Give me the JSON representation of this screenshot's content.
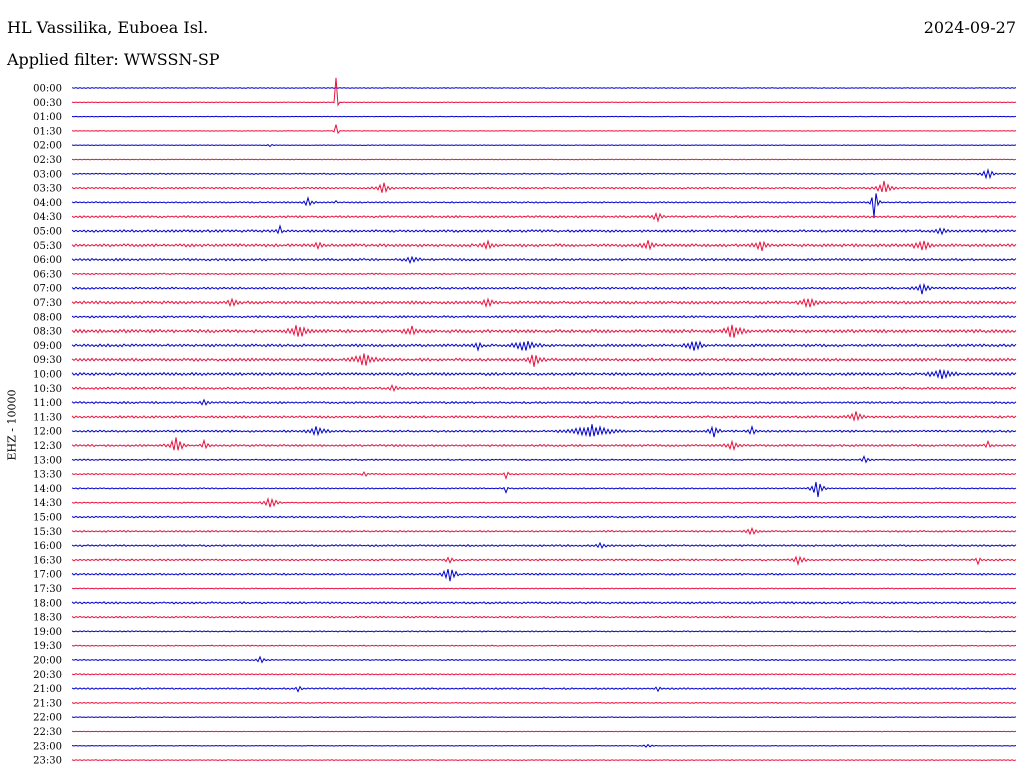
{
  "header": {
    "station": "HL Vassilika, Euboea Isl.",
    "date": "2024-09-27",
    "filter": "Applied filter: WWSSN-SP"
  },
  "chart_data": {
    "type": "line",
    "ylabel": "EHZ - 10000",
    "row_labels": [
      "00:00",
      "00:30",
      "01:00",
      "01:30",
      "02:00",
      "02:30",
      "03:00",
      "03:30",
      "04:00",
      "04:30",
      "05:00",
      "05:30",
      "06:00",
      "06:30",
      "07:00",
      "07:30",
      "08:00",
      "08:30",
      "09:00",
      "09:30",
      "10:00",
      "10:30",
      "11:00",
      "11:30",
      "12:00",
      "12:30",
      "13:00",
      "13:30",
      "14:00",
      "14:30",
      "15:00",
      "15:30",
      "16:00",
      "16:30",
      "17:00",
      "17:30",
      "18:00",
      "18:30",
      "19:00",
      "19:30",
      "20:00",
      "20:30",
      "21:00",
      "21:30",
      "22:00",
      "22:30",
      "23:00",
      "23:30"
    ],
    "colors": [
      "#0000cc",
      "#e8113e"
    ],
    "noise_level": [
      0.4,
      0.3,
      0.3,
      0.3,
      0.3,
      0.4,
      0.6,
      0.8,
      0.7,
      1.0,
      1.2,
      1.4,
      1.1,
      0.7,
      1.0,
      1.4,
      1.0,
      1.6,
      1.3,
      1.4,
      1.4,
      1.1,
      1.0,
      1.1,
      1.0,
      1.0,
      0.7,
      0.7,
      0.6,
      0.6,
      0.8,
      0.8,
      0.9,
      0.9,
      0.9,
      0.5,
      1.0,
      0.8,
      0.6,
      0.5,
      0.6,
      0.6,
      0.8,
      0.5,
      0.4,
      0.3,
      0.3,
      0.4
    ],
    "events": [
      {
        "row": 1,
        "t": 0.28,
        "amp": 45,
        "dur": 2
      },
      {
        "row": 3,
        "t": 0.28,
        "amp": 12,
        "dur": 3
      },
      {
        "row": 8,
        "t": 0.28,
        "amp": 2,
        "dur": 2
      },
      {
        "row": 4,
        "t": 0.21,
        "amp": 2,
        "dur": 6
      },
      {
        "row": 6,
        "t": 0.97,
        "amp": 7,
        "dur": 10
      },
      {
        "row": 7,
        "t": 0.33,
        "amp": 6,
        "dur": 12
      },
      {
        "row": 7,
        "t": 0.86,
        "amp": 7,
        "dur": 15
      },
      {
        "row": 8,
        "t": 0.25,
        "amp": 4,
        "dur": 10
      },
      {
        "row": 8,
        "t": 0.85,
        "amp": 18,
        "dur": 6
      },
      {
        "row": 9,
        "t": 0.62,
        "amp": 5,
        "dur": 10
      },
      {
        "row": 10,
        "t": 0.22,
        "amp": 7,
        "dur": 4
      },
      {
        "row": 10,
        "t": 0.92,
        "amp": 4,
        "dur": 8
      },
      {
        "row": 11,
        "t": 0.26,
        "amp": 5,
        "dur": 6
      },
      {
        "row": 11,
        "t": 0.44,
        "amp": 5,
        "dur": 10
      },
      {
        "row": 11,
        "t": 0.61,
        "amp": 5,
        "dur": 10
      },
      {
        "row": 11,
        "t": 0.73,
        "amp": 6,
        "dur": 12
      },
      {
        "row": 11,
        "t": 0.9,
        "amp": 6,
        "dur": 14
      },
      {
        "row": 12,
        "t": 0.36,
        "amp": 4,
        "dur": 12
      },
      {
        "row": 14,
        "t": 0.9,
        "amp": 6,
        "dur": 12
      },
      {
        "row": 15,
        "t": 0.17,
        "amp": 5,
        "dur": 8
      },
      {
        "row": 15,
        "t": 0.44,
        "amp": 6,
        "dur": 8
      },
      {
        "row": 15,
        "t": 0.78,
        "amp": 5,
        "dur": 14
      },
      {
        "row": 17,
        "t": 0.24,
        "amp": 8,
        "dur": 14
      },
      {
        "row": 17,
        "t": 0.36,
        "amp": 6,
        "dur": 10
      },
      {
        "row": 17,
        "t": 0.7,
        "amp": 8,
        "dur": 14
      },
      {
        "row": 18,
        "t": 0.43,
        "amp": 5,
        "dur": 6
      },
      {
        "row": 18,
        "t": 0.48,
        "amp": 6,
        "dur": 20
      },
      {
        "row": 18,
        "t": 0.66,
        "amp": 6,
        "dur": 14
      },
      {
        "row": 19,
        "t": 0.31,
        "amp": 7,
        "dur": 20
      },
      {
        "row": 19,
        "t": 0.49,
        "amp": 7,
        "dur": 12
      },
      {
        "row": 20,
        "t": 0.92,
        "amp": 6,
        "dur": 18
      },
      {
        "row": 21,
        "t": 0.34,
        "amp": 4,
        "dur": 8
      },
      {
        "row": 22,
        "t": 0.14,
        "amp": 4,
        "dur": 6
      },
      {
        "row": 23,
        "t": 0.83,
        "amp": 6,
        "dur": 12
      },
      {
        "row": 24,
        "t": 0.26,
        "amp": 6,
        "dur": 14
      },
      {
        "row": 24,
        "t": 0.55,
        "amp": 7,
        "dur": 36
      },
      {
        "row": 24,
        "t": 0.68,
        "amp": 6,
        "dur": 10
      },
      {
        "row": 24,
        "t": 0.72,
        "amp": 5,
        "dur": 8
      },
      {
        "row": 25,
        "t": 0.11,
        "amp": 9,
        "dur": 12
      },
      {
        "row": 25,
        "t": 0.14,
        "amp": 5,
        "dur": 6
      },
      {
        "row": 25,
        "t": 0.7,
        "amp": 5,
        "dur": 12
      },
      {
        "row": 25,
        "t": 0.97,
        "amp": 6,
        "dur": 4
      },
      {
        "row": 26,
        "t": 0.84,
        "amp": 5,
        "dur": 6
      },
      {
        "row": 27,
        "t": 0.46,
        "amp": 5,
        "dur": 4
      },
      {
        "row": 27,
        "t": 0.31,
        "amp": 4,
        "dur": 4
      },
      {
        "row": 28,
        "t": 0.46,
        "amp": 6,
        "dur": 3
      },
      {
        "row": 28,
        "t": 0.79,
        "amp": 11,
        "dur": 10
      },
      {
        "row": 29,
        "t": 0.21,
        "amp": 8,
        "dur": 12
      },
      {
        "row": 31,
        "t": 0.72,
        "amp": 4,
        "dur": 10
      },
      {
        "row": 32,
        "t": 0.56,
        "amp": 4,
        "dur": 8
      },
      {
        "row": 33,
        "t": 0.4,
        "amp": 4,
        "dur": 6
      },
      {
        "row": 33,
        "t": 0.77,
        "amp": 5,
        "dur": 10
      },
      {
        "row": 33,
        "t": 0.96,
        "amp": 7,
        "dur": 3
      },
      {
        "row": 34,
        "t": 0.4,
        "amp": 11,
        "dur": 10
      },
      {
        "row": 40,
        "t": 0.2,
        "amp": 5,
        "dur": 6
      },
      {
        "row": 42,
        "t": 0.24,
        "amp": 4,
        "dur": 5
      },
      {
        "row": 42,
        "t": 0.62,
        "amp": 4,
        "dur": 4
      },
      {
        "row": 46,
        "t": 0.61,
        "amp": 2,
        "dur": 10
      }
    ]
  }
}
